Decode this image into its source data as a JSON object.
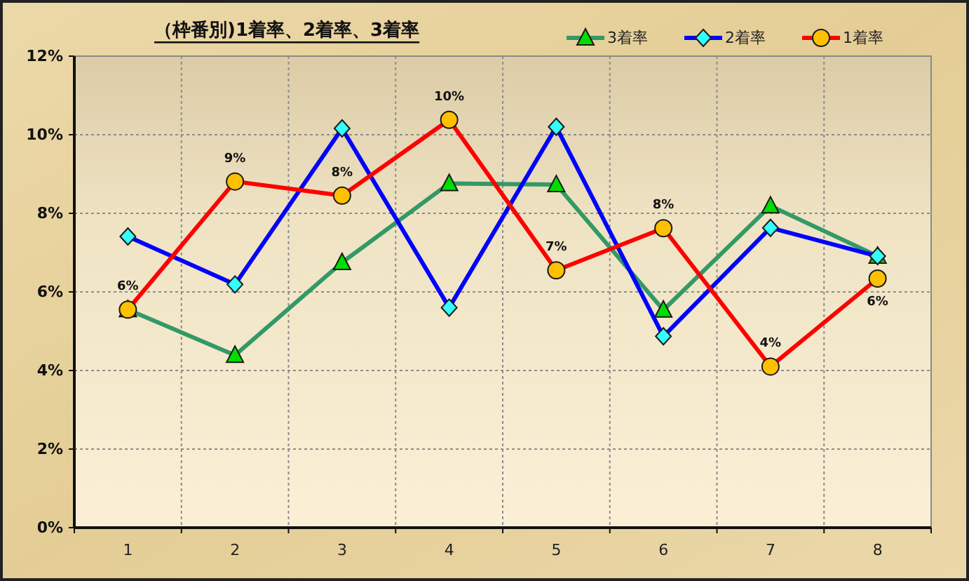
{
  "chart_data": {
    "type": "line",
    "title": "（枠番別)1着率、2着率、3着率",
    "categories": [
      "1",
      "2",
      "3",
      "4",
      "5",
      "6",
      "7",
      "8"
    ],
    "ylim": [
      0,
      12
    ],
    "yticks": [
      {
        "value": 0,
        "label": "0%"
      },
      {
        "value": 2,
        "label": "2%"
      },
      {
        "value": 4,
        "label": "4%"
      },
      {
        "value": 6,
        "label": "6%"
      },
      {
        "value": 8,
        "label": "8%"
      },
      {
        "value": 10,
        "label": "10%"
      },
      {
        "value": 12,
        "label": "12%"
      }
    ],
    "grid": true,
    "legend": "top right",
    "line_style": "solid",
    "series": [
      {
        "name": "3着率",
        "color": "#339966",
        "marker": "triangle",
        "colors": [
          "#00dd00",
          "#00dd00",
          "#00dd00",
          "#00dd00",
          "#00dd00",
          "#00dd00",
          "#00dd00",
          "#00dd00"
        ],
        "values": [
          5.55,
          4.39,
          6.75,
          8.76,
          8.73,
          5.54,
          8.19,
          6.91
        ]
      },
      {
        "name": "2着率",
        "color": "#0000ff",
        "marker": "diamond",
        "colors": [
          "#33ffff",
          "#33ffff",
          "#33ffff",
          "#33ffff",
          "#33ffff",
          "#33ffff",
          "#33ffff",
          "#33ffff"
        ],
        "values": [
          7.41,
          6.19,
          10.16,
          5.6,
          10.2,
          4.87,
          7.63,
          6.91
        ]
      },
      {
        "name": "1着率",
        "color": "#ff0000",
        "marker": "circle",
        "colors": [
          "#ffc000",
          "#ffc000",
          "#ffc000",
          "#ffc000",
          "#ffc000",
          "#ffc000",
          "#ffc000",
          "#ffc000"
        ],
        "values": [
          5.55,
          8.81,
          8.45,
          10.38,
          6.55,
          7.62,
          4.1,
          6.34
        ],
        "value_labels": [
          "6%",
          "9%",
          "8%",
          "10%",
          "7%",
          "8%",
          "4%",
          "6%"
        ]
      }
    ]
  }
}
